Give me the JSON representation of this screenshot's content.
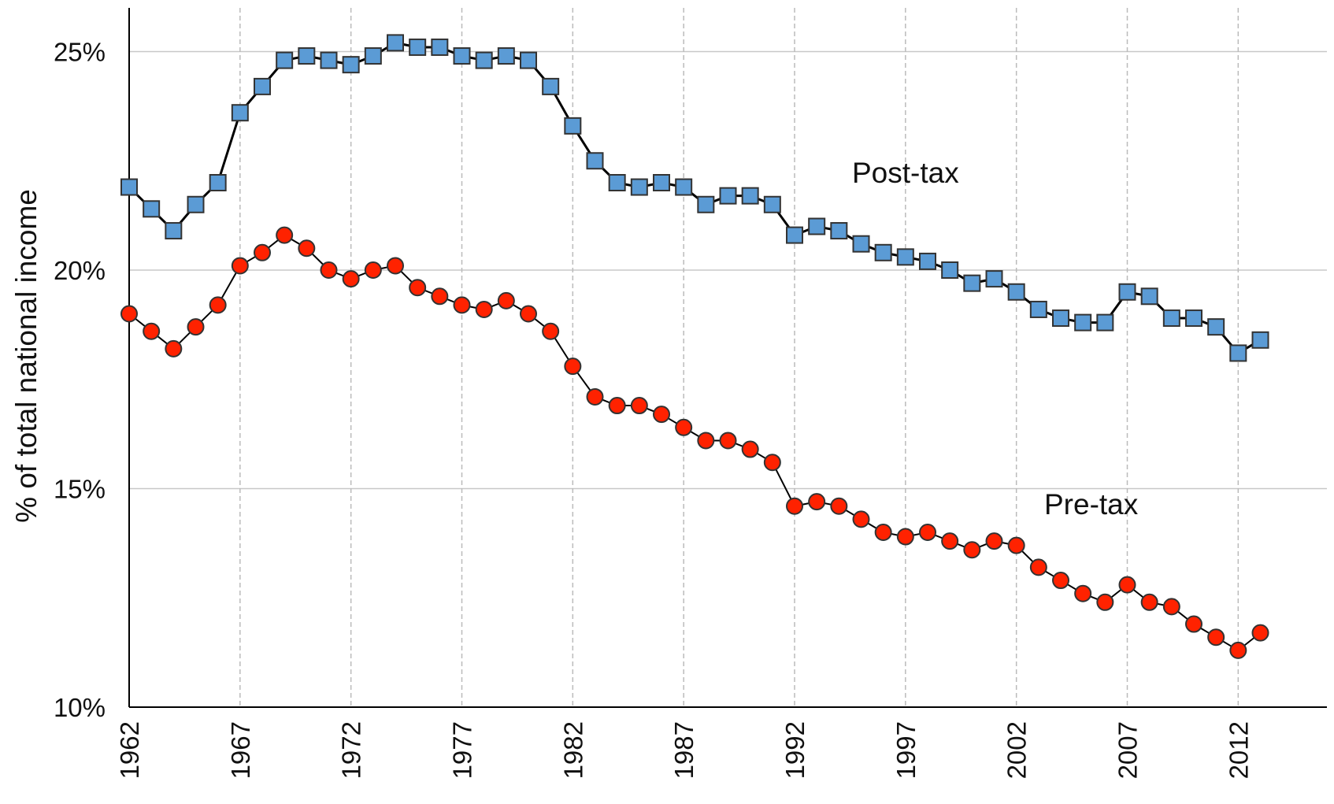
{
  "chart_data": {
    "type": "line",
    "y_label": "% of total national income",
    "x": [
      1962,
      1963,
      1964,
      1965,
      1966,
      1967,
      1968,
      1969,
      1970,
      1971,
      1972,
      1973,
      1974,
      1975,
      1976,
      1977,
      1978,
      1979,
      1980,
      1981,
      1982,
      1983,
      1984,
      1985,
      1986,
      1987,
      1988,
      1989,
      1990,
      1991,
      1992,
      1993,
      1994,
      1995,
      1996,
      1997,
      1998,
      1999,
      2000,
      2001,
      2002,
      2003,
      2004,
      2005,
      2006,
      2007,
      2008,
      2009,
      2010,
      2011,
      2012,
      2013
    ],
    "series": [
      {
        "name": "Post-tax",
        "color": "#5b9bd5",
        "marker": "square",
        "values": [
          21.9,
          21.4,
          20.9,
          21.5,
          22.0,
          23.6,
          24.2,
          24.8,
          24.9,
          24.8,
          24.7,
          24.9,
          25.2,
          25.1,
          25.1,
          24.9,
          24.8,
          24.9,
          24.8,
          24.2,
          23.3,
          22.5,
          22.0,
          21.9,
          22.0,
          21.9,
          21.5,
          21.7,
          21.7,
          21.5,
          20.8,
          21.0,
          20.9,
          20.6,
          20.4,
          20.3,
          20.2,
          20.0,
          19.7,
          19.8,
          19.5,
          19.1,
          18.9,
          18.8,
          18.8,
          19.5,
          19.4,
          18.9,
          18.9,
          18.7,
          18.1,
          18.4
        ]
      },
      {
        "name": "Pre-tax",
        "color": "#ff2200",
        "marker": "circle",
        "values": [
          19.0,
          18.6,
          18.2,
          18.7,
          19.2,
          20.1,
          20.4,
          20.8,
          20.5,
          20.0,
          19.8,
          20.0,
          20.1,
          19.6,
          19.4,
          19.2,
          19.1,
          19.3,
          19.0,
          18.6,
          17.8,
          17.1,
          16.9,
          16.9,
          16.7,
          16.4,
          16.1,
          16.1,
          15.9,
          15.6,
          14.6,
          14.7,
          14.6,
          14.3,
          14.0,
          13.9,
          14.0,
          13.8,
          13.6,
          13.8,
          13.7,
          13.2,
          12.9,
          12.6,
          12.4,
          12.8,
          12.4,
          12.3,
          11.9,
          11.6,
          11.3,
          11.7
        ]
      }
    ],
    "xlim": [
      1962,
      2016
    ],
    "xticks": [
      1962,
      1967,
      1972,
      1977,
      1982,
      1987,
      1992,
      1997,
      2002,
      2007,
      2012
    ],
    "ylim": [
      10,
      26
    ],
    "yticks": [
      {
        "value": 10,
        "label": "10%"
      },
      {
        "value": 15,
        "label": "15%"
      },
      {
        "value": 20,
        "label": "20%"
      },
      {
        "value": 25,
        "label": "25%"
      }
    ],
    "grid": true
  }
}
